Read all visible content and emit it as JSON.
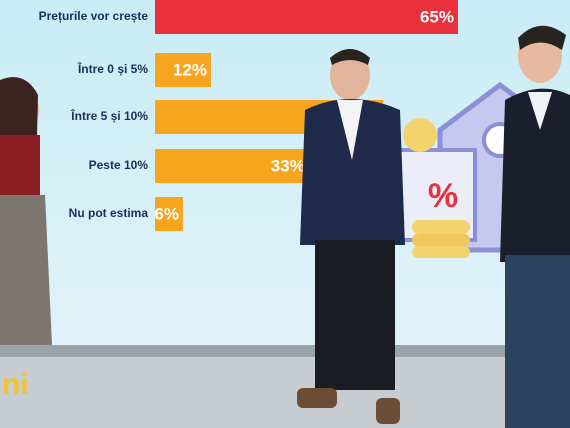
{
  "chart_data": {
    "type": "hbar",
    "categories": [
      "Prețurile vor crește",
      "Între 0 și 5%",
      "Între 5 și 10%",
      "Peste 10%",
      "Nu pot estima"
    ],
    "values": [
      65,
      12,
      49,
      33,
      6
    ],
    "value_labels": [
      "65%",
      "12%",
      null,
      "33%",
      "6%"
    ],
    "colors": [
      "#e8313b",
      "#f7a41e",
      "#f7a41e",
      "#f7a41e",
      "#f7a41e"
    ]
  },
  "logo": "ni"
}
